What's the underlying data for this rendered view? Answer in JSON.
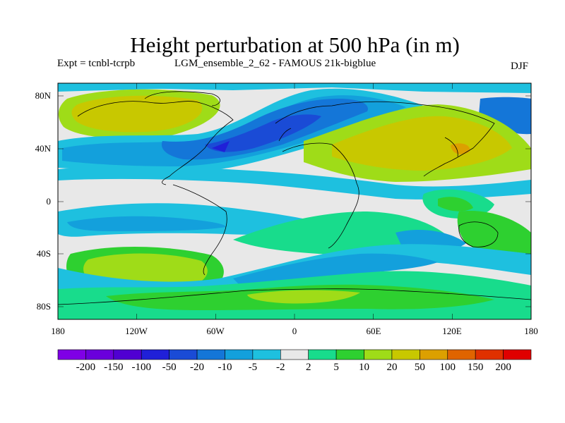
{
  "title": "Height perturbation at 500 hPa (in m)",
  "experiment": "Expt = tcnbl-tcrpb",
  "ensemble": "LGM_ensemble_2_62 - FAMOUS 21k-bigblue",
  "season": "DJF",
  "lat_ticks": [
    "80N",
    "40N",
    "0",
    "40S",
    "80S"
  ],
  "lon_ticks": [
    "180",
    "120W",
    "60W",
    "0",
    "60E",
    "120E",
    "180"
  ],
  "colorbar": {
    "labels": [
      "-200",
      "-150",
      "-100",
      "-50",
      "-20",
      "-10",
      "-5",
      "-2",
      "2",
      "5",
      "10",
      "20",
      "50",
      "100",
      "150",
      "200"
    ],
    "colors": [
      "#7f00e6",
      "#6a00dc",
      "#5000d2",
      "#2020d8",
      "#1a4bd6",
      "#1476d8",
      "#13a0dc",
      "#1ec0df",
      "#e8e8e8",
      "#18dc8c",
      "#2ed030",
      "#9fdc18",
      "#c8c800",
      "#dca000",
      "#e06400",
      "#e03000",
      "#e00000"
    ]
  },
  "map": {
    "background": "#e8e8e8",
    "region_colors": {
      "n_america_high": "#c8c800",
      "atlantic_low": "#1a4bd6",
      "eurasia_high": "#c8c800",
      "s_pacific_high": "#9fdc18",
      "s_ocean_low": "#13a0dc",
      "equatorial_low": "#1ec0df",
      "indonesia_positive": "#2ed030",
      "southern_positive": "#18dc8c"
    }
  }
}
